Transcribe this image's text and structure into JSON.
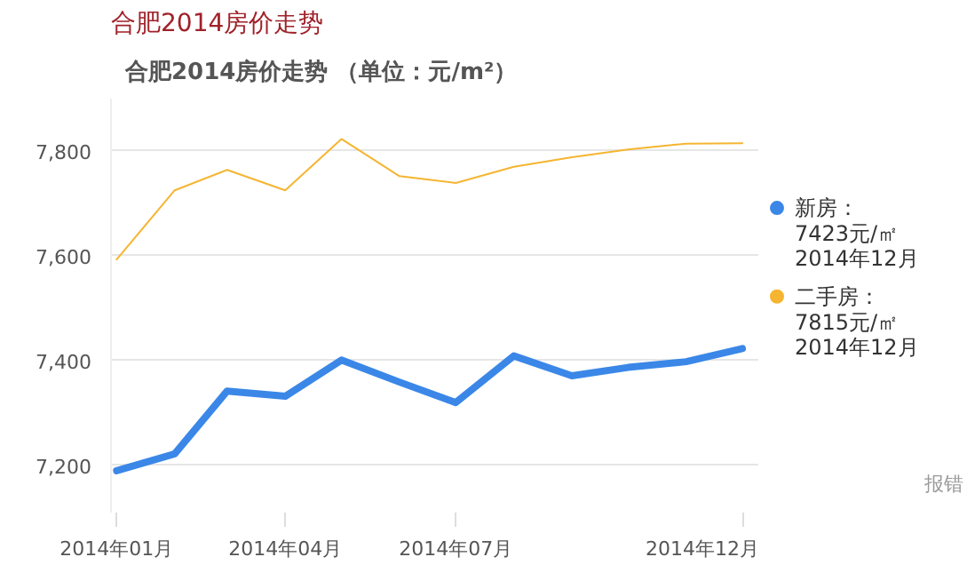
{
  "chart_data": {
    "type": "line",
    "title": "合肥2014房价走势",
    "subtitle": "合肥2014房价走势 （单位：元/m²）",
    "x": [
      "2014-01",
      "2014-02",
      "2014-03",
      "2014-04",
      "2014-05",
      "2014-06",
      "2014-07",
      "2014-08",
      "2014-09",
      "2014-10",
      "2014-11",
      "2014-12"
    ],
    "series": [
      {
        "name": "新房：",
        "color": "#3b87e8",
        "values": [
          7190,
          7222,
          7342,
          7332,
          7401,
          7359,
          7320,
          7409,
          7371,
          7387,
          7398,
          7423
        ]
      },
      {
        "name": "二手房：",
        "color": "#f5b531",
        "values": [
          7593,
          7725,
          7764,
          7725,
          7823,
          7752,
          7739,
          7770,
          7788,
          7803,
          7814,
          7815
        ]
      }
    ],
    "annotations": [
      "7423元/㎡",
      "2014年12月",
      "7815元/㎡",
      "2014年12月",
      "报错"
    ],
    "xlim": [
      "2013-12-29",
      "2014-12-10"
    ],
    "xticks": [
      {
        "value": "2014-01",
        "label": "2014年01月"
      },
      {
        "value": "2014-04",
        "label": "2014年04月"
      },
      {
        "value": "2014-07",
        "label": "2014年07月"
      },
      {
        "value": "2014-12",
        "label": "2014年12月"
      }
    ],
    "ylim": [
      7110,
      7900
    ],
    "yticks": [
      {
        "value": 7200,
        "label": "7,200"
      },
      {
        "value": 7400,
        "label": "7,400"
      },
      {
        "value": 7600,
        "label": "7,600"
      },
      {
        "value": 7800,
        "label": "7,800"
      }
    ],
    "grid": "y",
    "legend": "right",
    "marker": "none",
    "line_style": "solid"
  }
}
